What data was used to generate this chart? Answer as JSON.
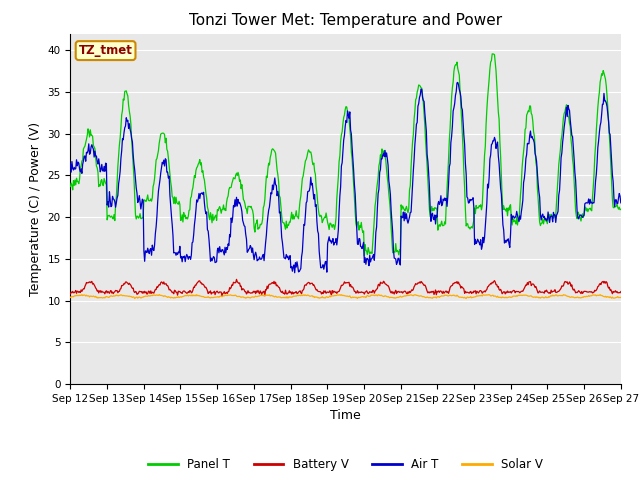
{
  "title": "Tonzi Tower Met: Temperature and Power",
  "xlabel": "Time",
  "ylabel": "Temperature (C) / Power (V)",
  "ylim": [
    0,
    42
  ],
  "yticks": [
    0,
    5,
    10,
    15,
    20,
    25,
    30,
    35,
    40
  ],
  "x_labels": [
    "Sep 12",
    "Sep 13",
    "Sep 14",
    "Sep 15",
    "Sep 16",
    "Sep 17",
    "Sep 18",
    "Sep 19",
    "Sep 20",
    "Sep 21",
    "Sep 22",
    "Sep 23",
    "Sep 24",
    "Sep 25",
    "Sep 26",
    "Sep 27"
  ],
  "legend_label": "TZ_tmet",
  "bg_color": "#e8e8e8",
  "grid_color": "#ffffff",
  "panel_T_color": "#00cc00",
  "battery_V_color": "#cc0000",
  "air_T_color": "#0000cc",
  "solar_V_color": "#ffaa00",
  "title_fontsize": 11,
  "axis_label_fontsize": 9,
  "tick_fontsize": 7.5,
  "legend_fontsize": 8.5
}
